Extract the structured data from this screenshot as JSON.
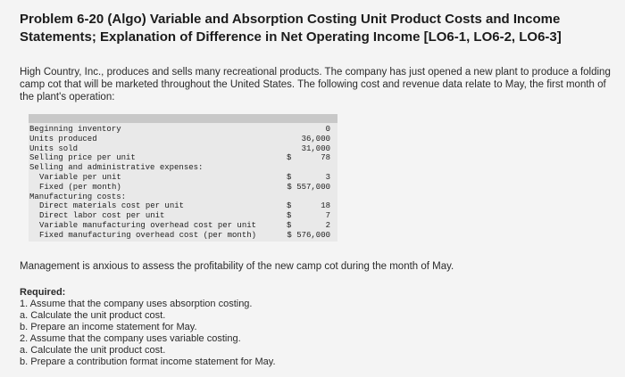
{
  "problem": {
    "title": "Problem 6-20 (Algo) Variable and Absorption Costing Unit Product Costs and Income Statements; Explanation of Difference in Net Operating Income [LO6-1, LO6-2, LO6-3]",
    "intro": "High Country, Inc., produces and sells many recreational products. The company has just opened a new plant to produce a folding camp cot that will be marketed throughout the United States. The following cost and revenue data relate to May, the first month of the plant's operation:",
    "management_text": "Management is anxious to assess the profitability of the new camp cot during the month of May."
  },
  "data_table": {
    "rows": [
      {
        "label": "Beginning inventory",
        "currency": "",
        "value": "0",
        "indent": 0
      },
      {
        "label": "Units produced",
        "currency": "",
        "value": "36,000",
        "indent": 0
      },
      {
        "label": "Units sold",
        "currency": "",
        "value": "31,000",
        "indent": 0
      },
      {
        "label": "Selling price per unit",
        "currency": "$",
        "value": "78",
        "indent": 0
      },
      {
        "label": "Selling and administrative expenses:",
        "currency": "",
        "value": "",
        "indent": 0
      },
      {
        "label": "Variable per unit",
        "currency": "$",
        "value": "3",
        "indent": 1
      },
      {
        "label": "Fixed (per month)",
        "currency": "",
        "value": "$ 557,000",
        "indent": 1
      },
      {
        "label": "Manufacturing costs:",
        "currency": "",
        "value": "",
        "indent": 0
      },
      {
        "label": "Direct materials cost per unit",
        "currency": "$",
        "value": "18",
        "indent": 1
      },
      {
        "label": "Direct labor cost per unit",
        "currency": "$",
        "value": "7",
        "indent": 1
      },
      {
        "label": "Variable manufacturing overhead cost per unit",
        "currency": "$",
        "value": "2",
        "indent": 1
      },
      {
        "label": "Fixed manufacturing overhead cost (per month)",
        "currency": "",
        "value": "$ 576,000",
        "indent": 1
      }
    ]
  },
  "required": {
    "heading": "Required:",
    "items": [
      "1. Assume that the company uses absorption costing.",
      "a. Calculate the unit product cost.",
      "b. Prepare an income statement for May.",
      "2. Assume that the company uses variable costing.",
      "a. Calculate the unit product cost.",
      "b. Prepare a contribution format income statement for May."
    ]
  }
}
